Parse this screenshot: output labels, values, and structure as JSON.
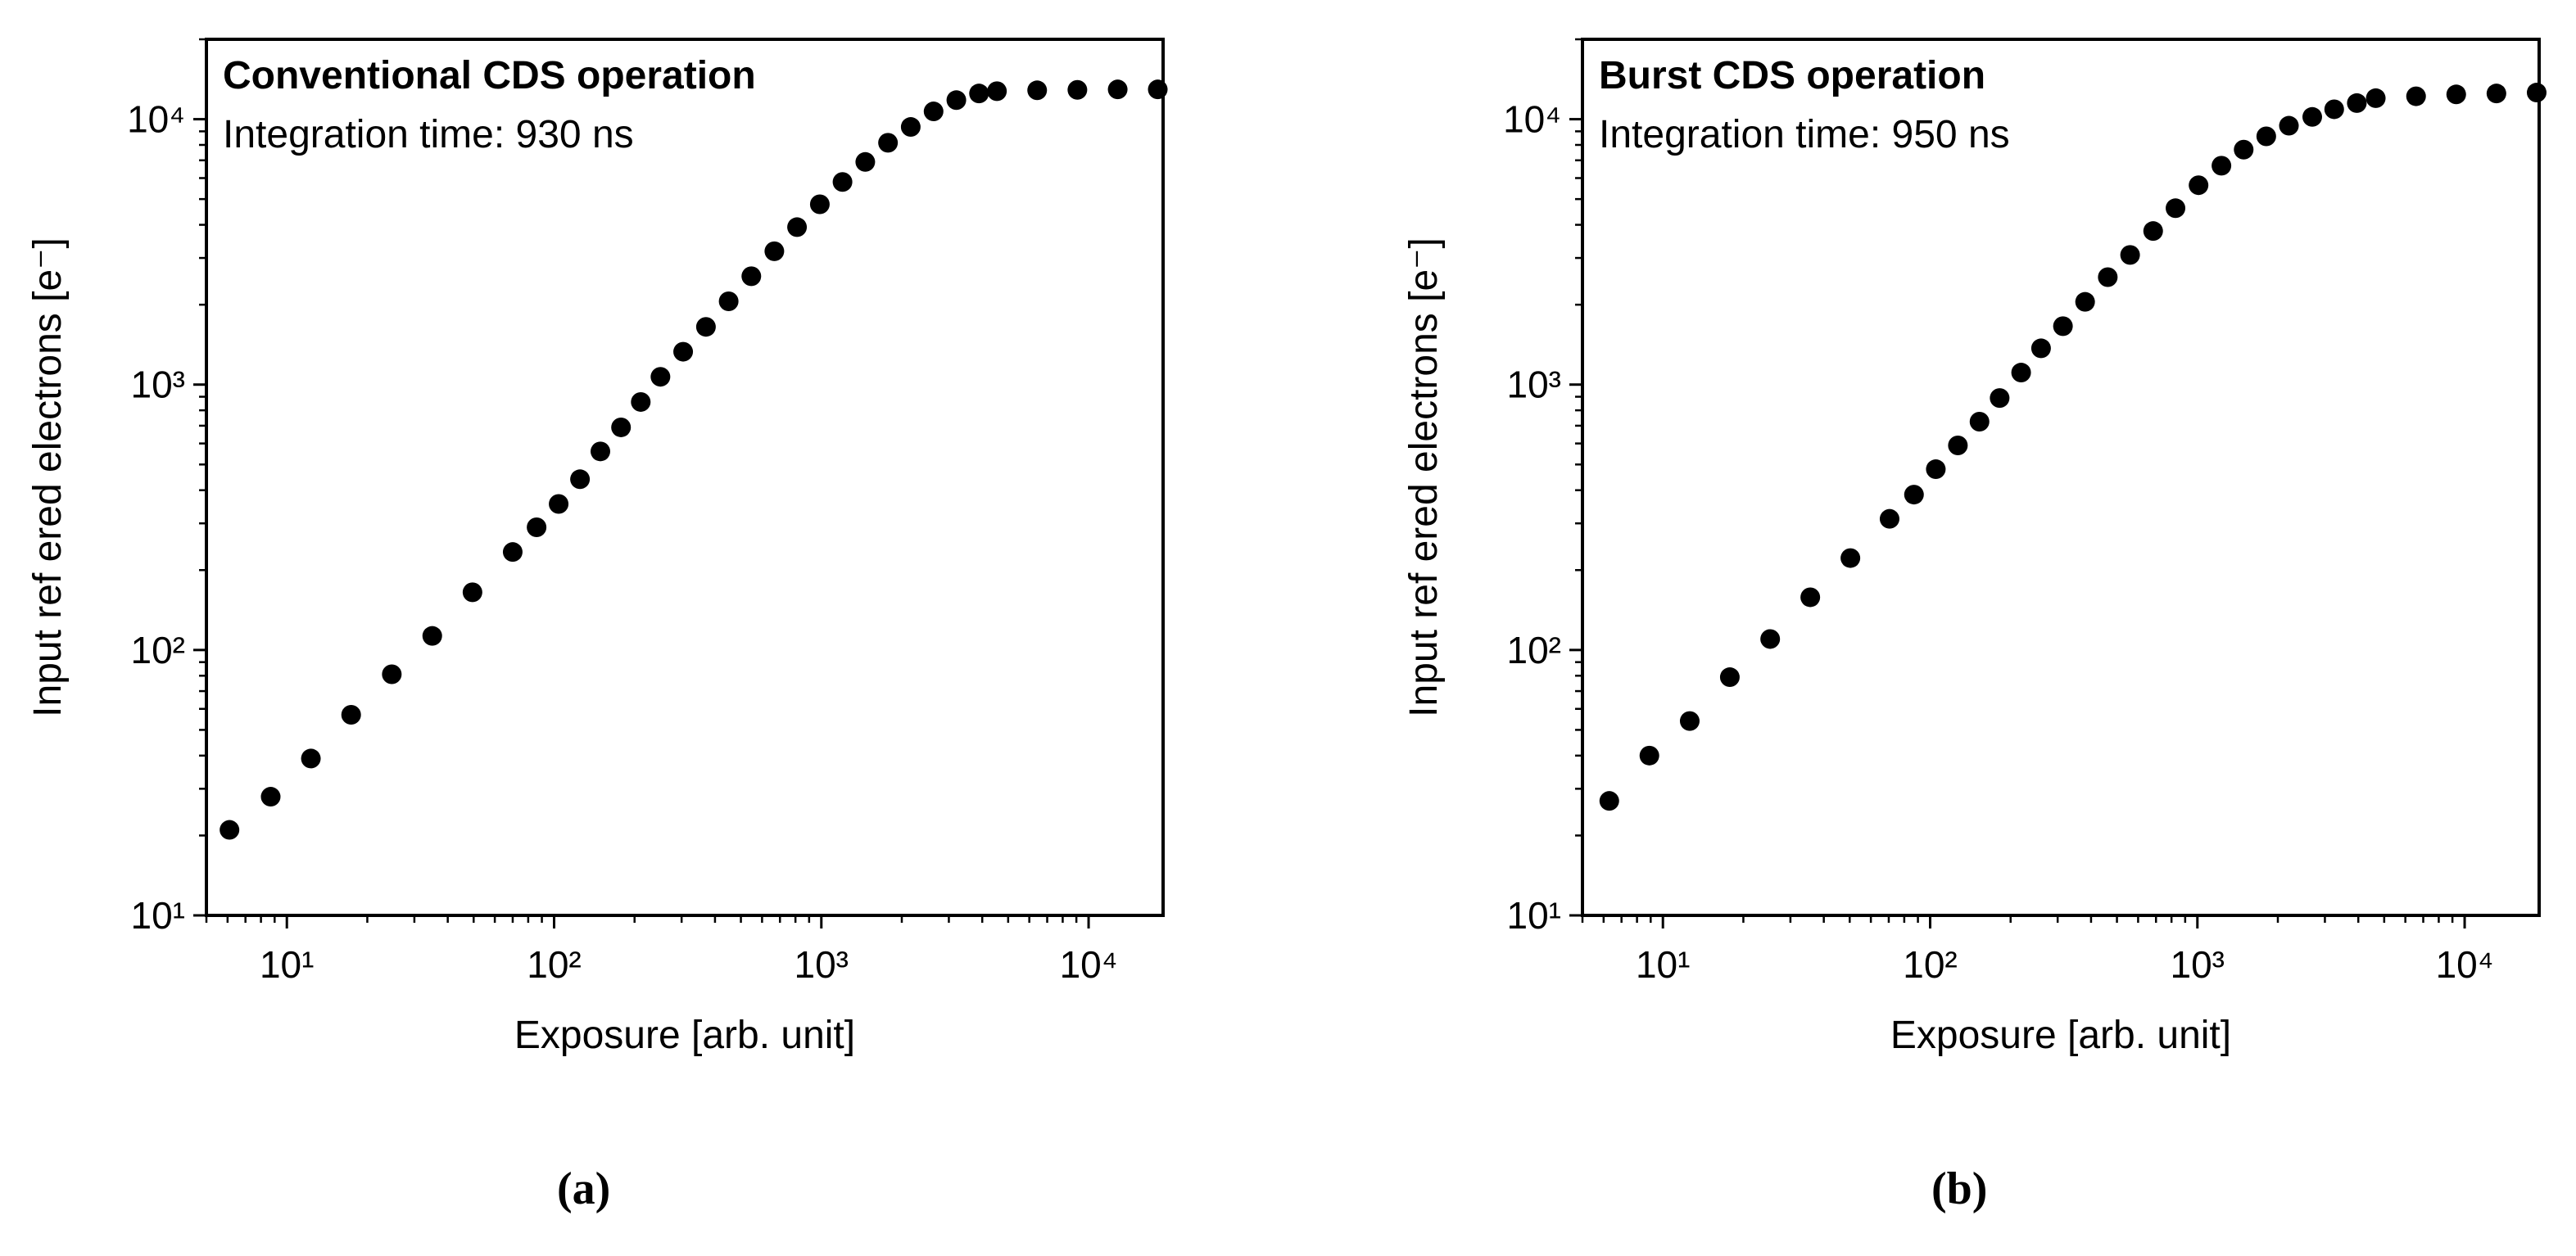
{
  "chart_data": [
    {
      "type": "scatter",
      "panel_label": "(a)",
      "title": "Conventional CDS operation",
      "subtitle": "Integration time: 930 ns",
      "xlabel": "Exposure [arb. unit]",
      "ylabel": "Input ref ered electrons [e⁻]",
      "xscale": "log",
      "yscale": "log",
      "xlim": [
        5,
        19000
      ],
      "ylim": [
        10,
        20000
      ],
      "x_ticks": [
        10,
        100,
        1000,
        10000
      ],
      "y_ticks": [
        10,
        100,
        1000,
        10000
      ],
      "grid": false,
      "series": [
        {
          "marker": "circle",
          "color": "#000000",
          "x": [
            6.1,
            8.7,
            12.3,
            17.4,
            24.7,
            35,
            49.5,
            70,
            86,
            104,
            125,
            149,
            178,
            211,
            250,
            304,
            370,
            450,
            547,
            667,
            811,
            987,
            1200,
            1460,
            1776,
            2160,
            2630,
            3200,
            3890,
            4540,
            6420,
            9080,
            12850,
            18150
          ],
          "y": [
            21,
            28,
            39,
            57,
            81,
            113,
            165,
            234,
            290,
            355,
            440,
            560,
            690,
            860,
            1070,
            1330,
            1650,
            2060,
            2560,
            3180,
            3920,
            4780,
            5800,
            6900,
            8150,
            9350,
            10700,
            11800,
            12500,
            12750,
            12850,
            12900,
            12950,
            12950
          ]
        }
      ]
    },
    {
      "type": "scatter",
      "panel_label": "(b)",
      "title": "Burst CDS operation",
      "subtitle": "Integration time: 950 ns",
      "xlabel": "Exposure [arb. unit]",
      "ylabel": "Input ref ered electrons [e⁻]",
      "xscale": "log",
      "yscale": "log",
      "xlim": [
        5,
        19000
      ],
      "ylim": [
        10,
        20000
      ],
      "x_ticks": [
        10,
        100,
        1000,
        10000
      ],
      "y_ticks": [
        10,
        100,
        1000,
        10000
      ],
      "grid": false,
      "series": [
        {
          "marker": "circle",
          "color": "#000000",
          "x": [
            6.3,
            8.9,
            12.6,
            17.8,
            25.2,
            35.6,
            50.3,
            70.5,
            87,
            105,
            127,
            153,
            182,
            219,
            260,
            314,
            380,
            462,
            560,
            683,
            828,
            1010,
            1230,
            1490,
            1810,
            2200,
            2690,
            3250,
            3950,
            4650,
            6580,
            9300,
            13150,
            18600
          ],
          "y": [
            27,
            40,
            54,
            79,
            110,
            158,
            222,
            312,
            385,
            480,
            590,
            725,
            890,
            1110,
            1370,
            1660,
            2050,
            2540,
            3080,
            3790,
            4620,
            5640,
            6680,
            7680,
            8620,
            9450,
            10200,
            10900,
            11500,
            12000,
            12200,
            12400,
            12500,
            12600
          ]
        }
      ]
    }
  ]
}
